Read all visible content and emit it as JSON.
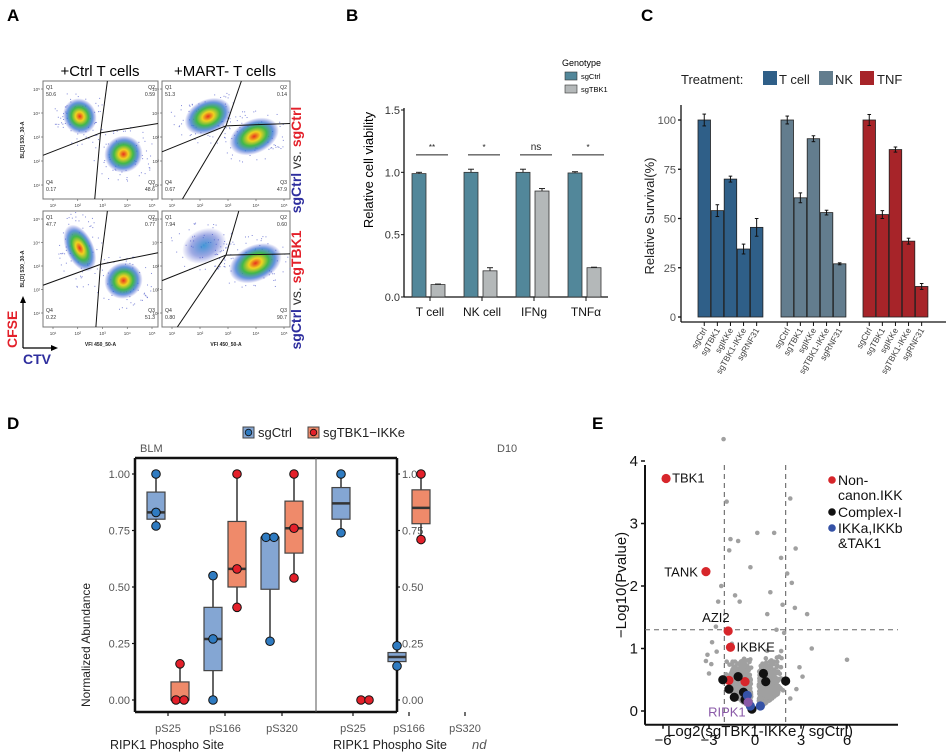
{
  "panels": {
    "A": "A",
    "B": "B",
    "C": "C",
    "D": "D",
    "E": "E"
  },
  "chart_data": [
    {
      "id": "A",
      "type": "scatter",
      "subtype": "flow-cytometry-density",
      "column_titles": [
        "+Ctrl T cells",
        "+MART- T cells"
      ],
      "row_labels": [
        {
          "left": "sgCtrl",
          "mid": " vs. ",
          "right": "sgCtrl"
        },
        {
          "left": "sgCtrl",
          "mid": " vs. ",
          "right": "sgTBK1"
        }
      ],
      "xlabel": "VFl 450_50-A",
      "ylabel": "BL[D] 530_30-A",
      "tick_labels": [
        "10¹",
        "10²",
        "10³",
        "10⁴",
        "10⁵"
      ],
      "axis_legend": {
        "y": "CFSE",
        "x": "CTV"
      },
      "plots": [
        {
          "row": 0,
          "col": 0,
          "quadrants": {
            "Q1": "50.6",
            "Q2": "0.59",
            "Q3": "48.6",
            "Q4": "0.17"
          }
        },
        {
          "row": 0,
          "col": 1,
          "quadrants": {
            "Q1": "51.3",
            "Q2": "0.14",
            "Q3": "47.9",
            "Q4": "0.67"
          }
        },
        {
          "row": 1,
          "col": 0,
          "quadrants": {
            "Q1": "47.7",
            "Q2": "0.77",
            "Q3": "51.3",
            "Q4": "0.22"
          }
        },
        {
          "row": 1,
          "col": 1,
          "quadrants": {
            "Q1": "7.94",
            "Q2": "0.60",
            "Q3": "90.7",
            "Q4": "0.80"
          }
        }
      ]
    },
    {
      "id": "B",
      "type": "bar",
      "title": "",
      "categories": [
        "T cell",
        "NK cell",
        "IFNg",
        "TNFα"
      ],
      "series": [
        {
          "name": "sgCtrl",
          "color": "#52879a",
          "values": [
            0.99,
            1.0,
            1.0,
            0.995
          ],
          "errors": [
            0.01,
            0.025,
            0.025,
            0.01
          ]
        },
        {
          "name": "sgTBK1",
          "color": "#b4b8b9",
          "values": [
            0.1,
            0.21,
            0.85,
            0.235
          ],
          "errors": [
            0.004,
            0.025,
            0.02,
            0.004
          ]
        }
      ],
      "significance": [
        "**",
        "*",
        "ns",
        "*"
      ],
      "legend_title": "Genotype",
      "legend_position": "top-right",
      "xlabel": "",
      "ylabel": "Relative cell viability",
      "ylim": [
        0,
        1.5
      ],
      "yticks": [
        "0.0",
        "0.5",
        "1.0",
        "1.5"
      ]
    },
    {
      "id": "C",
      "type": "bar",
      "legend_title": "Treatment:",
      "legend_position": "top",
      "groups": [
        {
          "name": "T cell",
          "color": "#2f5f88",
          "values": [
            100,
            54,
            70,
            34.5,
            45.5
          ],
          "errors": [
            3,
            3,
            1.5,
            2.5,
            4.5
          ]
        },
        {
          "name": "NK",
          "color": "#637d8e",
          "values": [
            100,
            60.5,
            90.5,
            53,
            27
          ],
          "errors": [
            2,
            2.5,
            1.5,
            1.2,
            0.5
          ]
        },
        {
          "name": "TNF",
          "color": "#a72429",
          "values": [
            100,
            52,
            85,
            38.5,
            15.5
          ],
          "errors": [
            2.8,
            2,
            1.3,
            1.5,
            1.5
          ]
        }
      ],
      "categories": [
        "sgCtrl",
        "sgTBK1",
        "sgIKKe",
        "sgTBK1-IKKe",
        "sgRNF31"
      ],
      "xlabel": "",
      "ylabel": "Relative Survival(%)",
      "ylim": [
        0,
        105
      ],
      "yticks": [
        "0",
        "25",
        "50",
        "75",
        "100"
      ]
    },
    {
      "id": "D",
      "type": "box",
      "legend": [
        {
          "name": "sgCtrl",
          "fill": "#84a6d3",
          "point": "#2f7bc1"
        },
        {
          "name": "sgTBK1−IKKe",
          "fill": "#ef8a6a",
          "point": "#e3202a"
        }
      ],
      "legend_position": "top",
      "facets": [
        "BLM",
        "D10"
      ],
      "categories": [
        "pS25",
        "pS166",
        "pS320"
      ],
      "xlabel": "RIPK1 Phospho Site",
      "ylabel": "Normalized Abundance",
      "ylim": [
        0,
        1
      ],
      "yticks": [
        "0.00",
        "0.25",
        "0.50",
        "0.75",
        "1.00"
      ],
      "annotation": "nd",
      "boxes": [
        {
          "facet": 0,
          "cat": 0,
          "group": 0,
          "q1": 0.8,
          "median": 0.83,
          "q3": 0.92,
          "min": 0.77,
          "max": 1.0,
          "points": [
            1.0,
            0.83,
            0.77
          ]
        },
        {
          "facet": 0,
          "cat": 0,
          "group": 1,
          "q1": 0.0,
          "median": 0.0,
          "q3": 0.08,
          "min": 0.0,
          "max": 0.16,
          "points": [
            0.16,
            0.0,
            0.0
          ]
        },
        {
          "facet": 0,
          "cat": 1,
          "group": 0,
          "q1": 0.13,
          "median": 0.27,
          "q3": 0.41,
          "min": 0.0,
          "max": 0.55,
          "points": [
            0.55,
            0.27,
            0.0
          ]
        },
        {
          "facet": 0,
          "cat": 1,
          "group": 1,
          "q1": 0.5,
          "median": 0.58,
          "q3": 0.79,
          "min": 0.41,
          "max": 1.0,
          "points": [
            1.0,
            0.58,
            0.41
          ]
        },
        {
          "facet": 0,
          "cat": 2,
          "group": 0,
          "q1": 0.49,
          "median": 0.72,
          "q3": 0.72,
          "min": 0.26,
          "max": 0.72,
          "points": [
            0.72,
            0.72,
            0.26
          ]
        },
        {
          "facet": 0,
          "cat": 2,
          "group": 1,
          "q1": 0.65,
          "median": 0.76,
          "q3": 0.88,
          "min": 0.54,
          "max": 1.0,
          "points": [
            1.0,
            0.76,
            0.54
          ]
        },
        {
          "facet": 1,
          "cat": 0,
          "group": 1,
          "q1": null,
          "median": null,
          "q3": null,
          "min": null,
          "max": null,
          "points": [
            0.0,
            0.0
          ]
        },
        {
          "facet": 1,
          "cat": 1,
          "group": 0,
          "q1": 0.17,
          "median": 0.19,
          "q3": 0.21,
          "min": 0.15,
          "max": 0.24,
          "points": [
            0.24,
            0.15
          ]
        },
        {
          "facet": 1,
          "cat": 0,
          "group": 0,
          "q1": 0.8,
          "median": 0.87,
          "q3": 0.94,
          "min": 0.74,
          "max": 1.0,
          "points": [
            1.0,
            0.74
          ]
        },
        {
          "facet": 1,
          "cat": 1,
          "group": 1,
          "q1": 0.78,
          "median": 0.85,
          "q3": 0.93,
          "min": 0.71,
          "max": 1.0,
          "points": [
            1.0,
            0.71
          ]
        }
      ]
    },
    {
      "id": "E",
      "type": "scatter",
      "subtype": "volcano",
      "xlabel": "Log2(sgTBK1-IKKe / sgCtrl)",
      "ylabel": "−Log10(Pvalue)",
      "xlim": [
        -6.5,
        6.5
      ],
      "ylim": [
        -0.2,
        4.7
      ],
      "xticks": [
        "−6",
        "−3",
        "0",
        "3",
        "6"
      ],
      "yticks": [
        "0",
        "1",
        "2",
        "3",
        "4"
      ],
      "thresholds": {
        "x": [
          -2,
          2
        ],
        "y": 1.3
      },
      "legend": [
        {
          "name": "Non-\ncanon.IKK",
          "line1": "Non-",
          "line2": "canon.IKK",
          "color": "#d7262b"
        },
        {
          "name": "Complex-I",
          "line1": "Complex-I",
          "line2": "",
          "color": "#111111"
        },
        {
          "name": "IKKa,IKKb &TAK1",
          "line1": "IKKa,IKKb",
          "line2": "&TAK1",
          "color": "#3552a6"
        }
      ],
      "legend_position": "top-right",
      "labeled_points": [
        {
          "label": "TBK1",
          "x": -5.8,
          "y": 3.72,
          "color": "#d7262b"
        },
        {
          "label": "TANK",
          "x": -3.2,
          "y": 2.23,
          "color": "#d7262b"
        },
        {
          "label": "AZI2",
          "x": -1.75,
          "y": 1.28,
          "color": "#d7262b"
        },
        {
          "label": "IKBKE",
          "x": -1.6,
          "y": 1.02,
          "color": "#d7262b"
        },
        {
          "label": "RIPK1",
          "x": -0.45,
          "y": 0.14,
          "color": "#8a5aa8"
        }
      ],
      "highlight_points": [
        {
          "x": -1.7,
          "y": 0.49,
          "color": "#d7262b"
        },
        {
          "x": -0.65,
          "y": 0.47,
          "color": "#d7262b"
        },
        {
          "x": -2.1,
          "y": 0.5,
          "color": "#111111"
        },
        {
          "x": -1.1,
          "y": 0.55,
          "color": "#111111"
        },
        {
          "x": -1.7,
          "y": 0.35,
          "color": "#111111"
        },
        {
          "x": -1.35,
          "y": 0.22,
          "color": "#111111"
        },
        {
          "x": -0.75,
          "y": 0.3,
          "color": "#111111"
        },
        {
          "x": -0.65,
          "y": 0.18,
          "color": "#111111"
        },
        {
          "x": -0.2,
          "y": 0.03,
          "color": "#111111"
        },
        {
          "x": 0.55,
          "y": 0.6,
          "color": "#111111"
        },
        {
          "x": 0.7,
          "y": 0.47,
          "color": "#111111"
        },
        {
          "x": 2.0,
          "y": 0.48,
          "color": "#111111"
        },
        {
          "x": -0.5,
          "y": 0.25,
          "color": "#3552a6"
        },
        {
          "x": -0.3,
          "y": 0.08,
          "color": "#3552a6"
        },
        {
          "x": 0.35,
          "y": 0.08,
          "color": "#3552a6"
        }
      ],
      "background_points": [
        {
          "x": -2.05,
          "y": 4.35
        },
        {
          "x": -1.85,
          "y": 3.35
        },
        {
          "x": -1.6,
          "y": 2.75
        },
        {
          "x": -1.68,
          "y": 2.57
        },
        {
          "x": -1.1,
          "y": 2.72
        },
        {
          "x": 0.15,
          "y": 2.85
        },
        {
          "x": -0.3,
          "y": 2.3
        },
        {
          "x": 1.7,
          "y": 2.45
        },
        {
          "x": 2.3,
          "y": 3.4
        },
        {
          "x": 2.65,
          "y": 2.6
        },
        {
          "x": 3.4,
          "y": 1.55
        },
        {
          "x": 3.7,
          "y": 1.0
        },
        {
          "x": 6.0,
          "y": 0.82
        },
        {
          "x": 1.25,
          "y": 2.85
        },
        {
          "x": 2.1,
          "y": 2.2
        },
        {
          "x": 2.4,
          "y": 2.05
        },
        {
          "x": 2.6,
          "y": 1.65
        },
        {
          "x": -2.4,
          "y": 1.75
        },
        {
          "x": -2.55,
          "y": 1.35
        },
        {
          "x": -2.8,
          "y": 1.1
        },
        {
          "x": -3.1,
          "y": 0.9
        },
        {
          "x": -3.0,
          "y": 0.6
        },
        {
          "x": -2.85,
          "y": 0.75
        },
        {
          "x": -2.5,
          "y": 0.95
        },
        {
          "x": -1.3,
          "y": 1.85
        },
        {
          "x": -1.0,
          "y": 1.75
        },
        {
          "x": 0.8,
          "y": 1.55
        },
        {
          "x": 1.0,
          "y": 1.9
        },
        {
          "x": 1.8,
          "y": 1.7
        },
        {
          "x": 2.9,
          "y": 0.7
        },
        {
          "x": 2.7,
          "y": 0.35
        },
        {
          "x": 2.3,
          "y": 0.2
        },
        {
          "x": 3.1,
          "y": 0.55
        },
        {
          "x": -3.2,
          "y": 0.8
        },
        {
          "x": -2.2,
          "y": 2.0
        },
        {
          "x": 1.4,
          "y": 1.3
        },
        {
          "x": 1.9,
          "y": 1.25
        }
      ]
    }
  ]
}
